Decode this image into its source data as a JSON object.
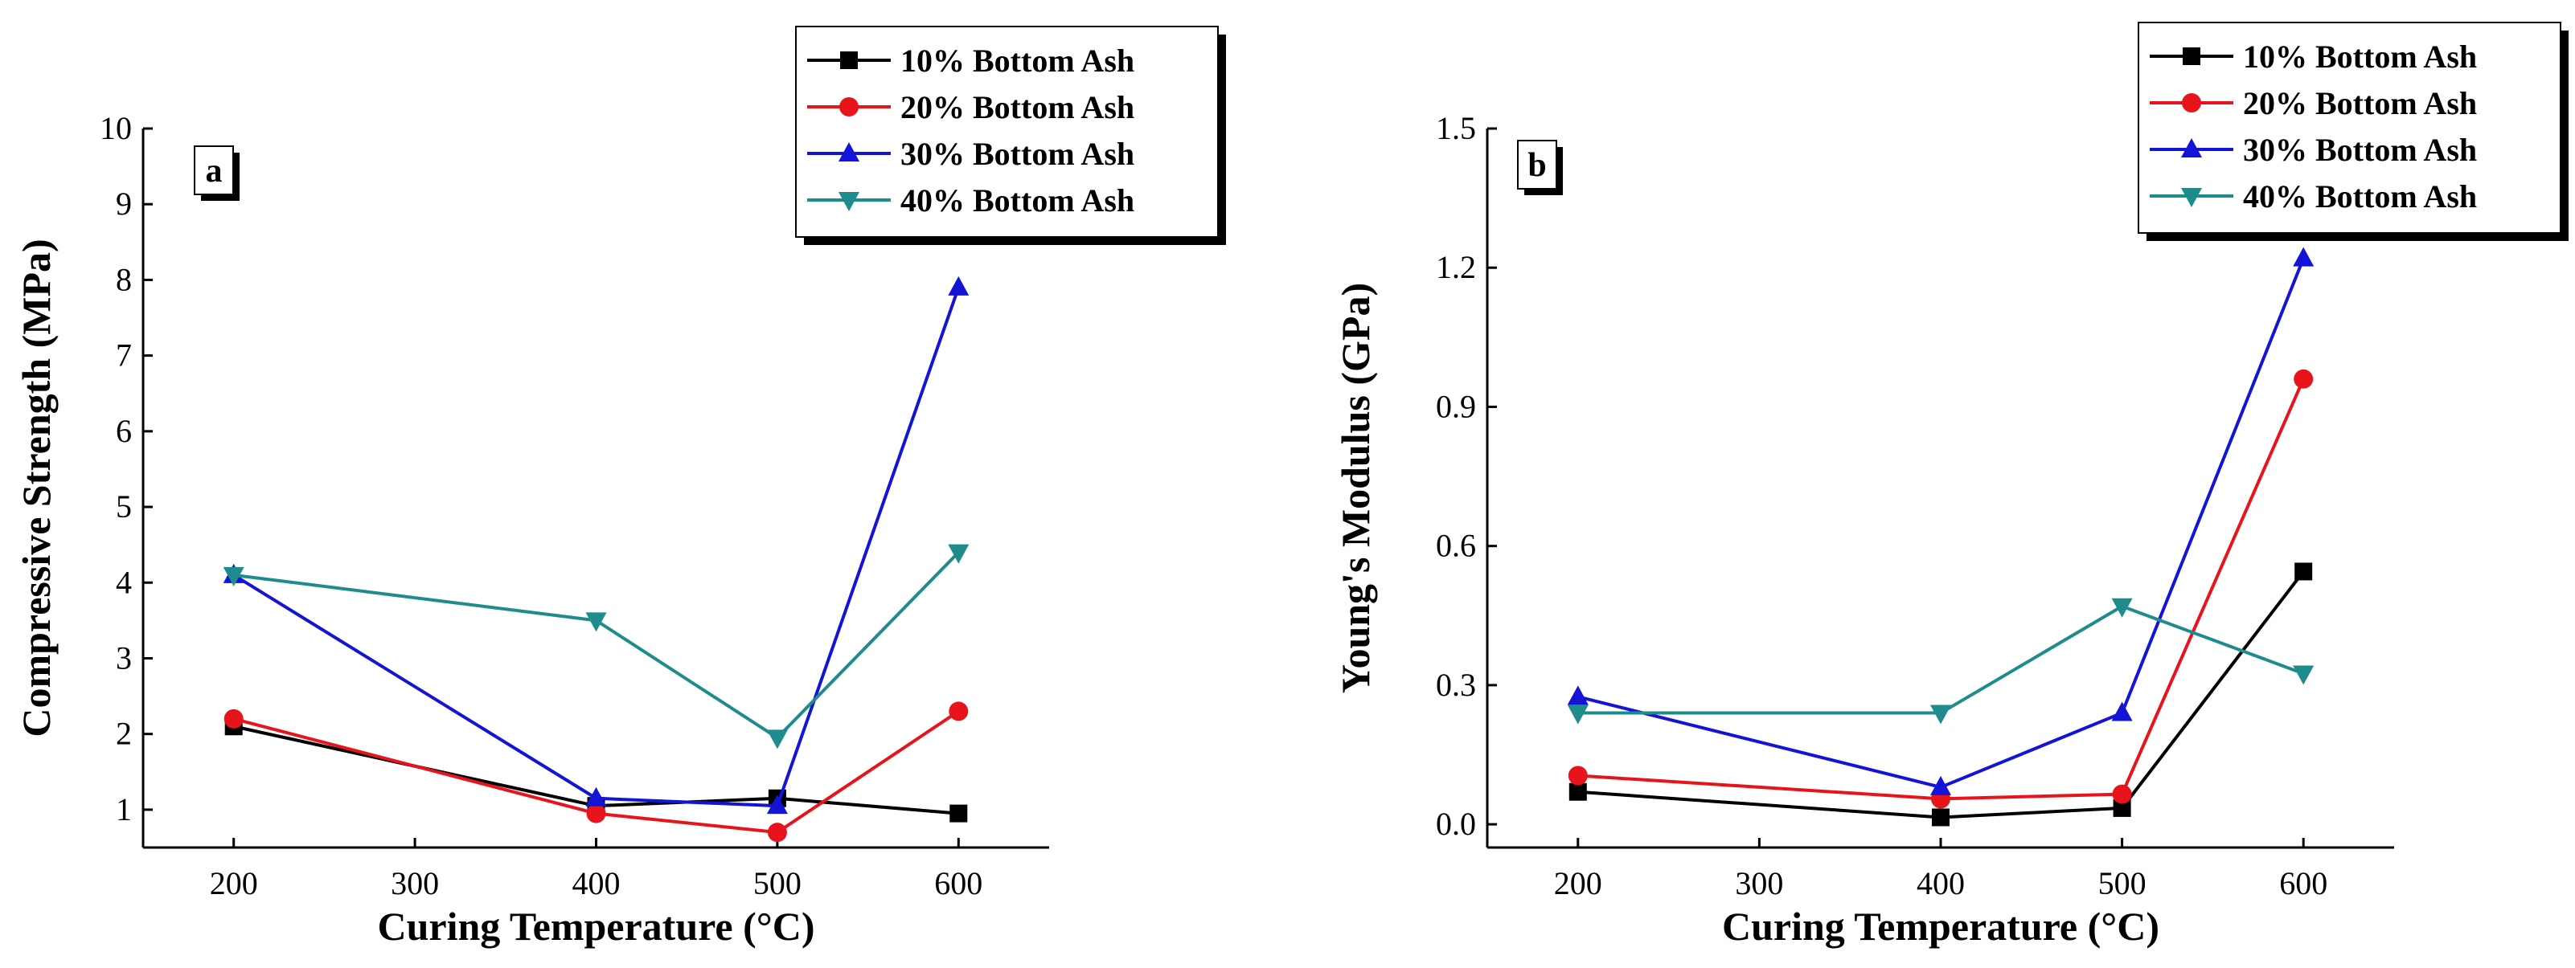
{
  "chart_data": [
    {
      "type": "line",
      "panel_label": "a",
      "xlabel": "Curing Temperature (°C)",
      "ylabel": "Compressive Strength (MPa)",
      "xlim": [
        150,
        650
      ],
      "ylim": [
        0.5,
        10
      ],
      "xticks": [
        200,
        300,
        400,
        500,
        600
      ],
      "yticks": [
        1,
        2,
        3,
        4,
        5,
        6,
        7,
        8,
        9,
        10
      ],
      "x": [
        200,
        400,
        500,
        600
      ],
      "series": [
        {
          "name": "10% Bottom Ash",
          "color": "#000000",
          "marker": "square",
          "values": [
            2.1,
            1.05,
            1.15,
            0.95
          ]
        },
        {
          "name": "20% Bottom Ash",
          "color": "#e8141b",
          "marker": "circle",
          "values": [
            2.2,
            0.95,
            0.7,
            2.3
          ]
        },
        {
          "name": "30% Bottom Ash",
          "color": "#1414d6",
          "marker": "triangle-up",
          "values": [
            4.1,
            1.15,
            1.05,
            7.9
          ]
        },
        {
          "name": "40% Bottom Ash",
          "color": "#1e8c8c",
          "marker": "triangle-down",
          "values": [
            4.1,
            3.5,
            1.95,
            4.4
          ]
        }
      ]
    },
    {
      "type": "line",
      "panel_label": "b",
      "xlabel": "Curing Temperature (°C)",
      "ylabel": "Young's Modulus (GPa)",
      "xlim": [
        150,
        650
      ],
      "ylim": [
        -0.05,
        1.5
      ],
      "xticks": [
        200,
        300,
        400,
        500,
        600
      ],
      "yticks": [
        0.0,
        0.3,
        0.6,
        0.9,
        1.2,
        1.5
      ],
      "ytick_labels": [
        "0.0",
        "0.3",
        "0.6",
        "0.9",
        "1.2",
        "1.5"
      ],
      "x": [
        200,
        400,
        500,
        600
      ],
      "series": [
        {
          "name": "10% Bottom Ash",
          "color": "#000000",
          "marker": "square",
          "values": [
            0.07,
            0.015,
            0.035,
            0.545
          ]
        },
        {
          "name": "20% Bottom Ash",
          "color": "#e8141b",
          "marker": "circle",
          "values": [
            0.105,
            0.055,
            0.065,
            0.96
          ]
        },
        {
          "name": "30% Bottom Ash",
          "color": "#1414d6",
          "marker": "triangle-up",
          "values": [
            0.275,
            0.08,
            0.24,
            1.22
          ]
        },
        {
          "name": "40% Bottom Ash",
          "color": "#1e8c8c",
          "marker": "triangle-down",
          "values": [
            0.24,
            0.24,
            0.47,
            0.325
          ]
        }
      ]
    }
  ]
}
